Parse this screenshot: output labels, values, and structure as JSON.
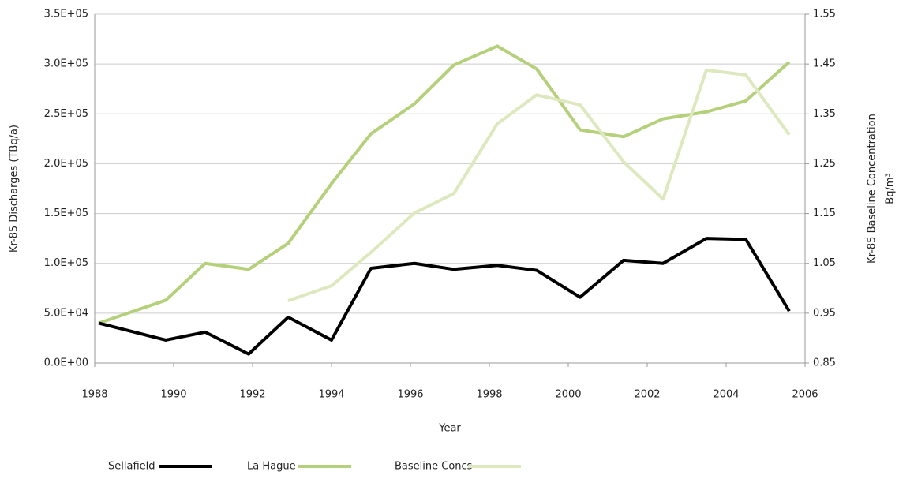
{
  "chart_data": {
    "type": "line",
    "x_label": "Year",
    "y_label": "Kr-85 Discharges (TBq/a)",
    "y2_label": "Kr-85 Baseline Concentration",
    "y2_unit": "Bq/m³",
    "x": [
      1988.1,
      1989.8,
      1990.8,
      1991.9,
      1992.9,
      1994.0,
      1995.0,
      1996.1,
      1997.1,
      1998.2,
      1999.2,
      2000.3,
      2001.4,
      2002.4,
      2003.5,
      2004.5,
      2005.6
    ],
    "series": [
      {
        "name": "Sellafield",
        "color": "#000000",
        "values": [
          40000,
          23000,
          31000,
          9000,
          46000,
          23000,
          95000,
          100000,
          94000,
          98000,
          93000,
          66000,
          103000,
          100000,
          125000,
          124000,
          52000
        ]
      },
      {
        "name": "La Hague",
        "color": "#b5d07a",
        "values": [
          40000,
          63000,
          100000,
          94000,
          120000,
          180000,
          230000,
          260000,
          299000,
          318000,
          295000,
          234000,
          227000,
          245000,
          252000,
          263000,
          302000
        ]
      },
      {
        "name": "Baseline Concs",
        "color": "#dde8be",
        "axis": "y2",
        "values": [
          null,
          null,
          null,
          null,
          0.975,
          1.005,
          1.072,
          1.151,
          1.19,
          1.33,
          1.388,
          1.368,
          1.254,
          1.179,
          1.438,
          1.428,
          1.308
        ]
      }
    ],
    "xlim": [
      1988,
      2006
    ],
    "xticks": [
      1988,
      1990,
      1992,
      1994,
      1996,
      1998,
      2000,
      2002,
      2004,
      2006
    ],
    "ylim": [
      0,
      350000
    ],
    "yticks": [
      {
        "value": 0,
        "label": "0.0E+00"
      },
      {
        "value": 50000,
        "label": "5.0E+04"
      },
      {
        "value": 100000,
        "label": "1.0E+05"
      },
      {
        "value": 150000,
        "label": "1.5E+05"
      },
      {
        "value": 200000,
        "label": "2.0E+05"
      },
      {
        "value": 250000,
        "label": "2.5E+05"
      },
      {
        "value": 300000,
        "label": "3.0E+05"
      },
      {
        "value": 350000,
        "label": "3.5E+05"
      }
    ],
    "y2lim": [
      0.85,
      1.55
    ],
    "y2ticks": [
      0.85,
      0.95,
      1.05,
      1.15,
      1.25,
      1.35,
      1.45,
      1.55
    ],
    "grid": true
  }
}
